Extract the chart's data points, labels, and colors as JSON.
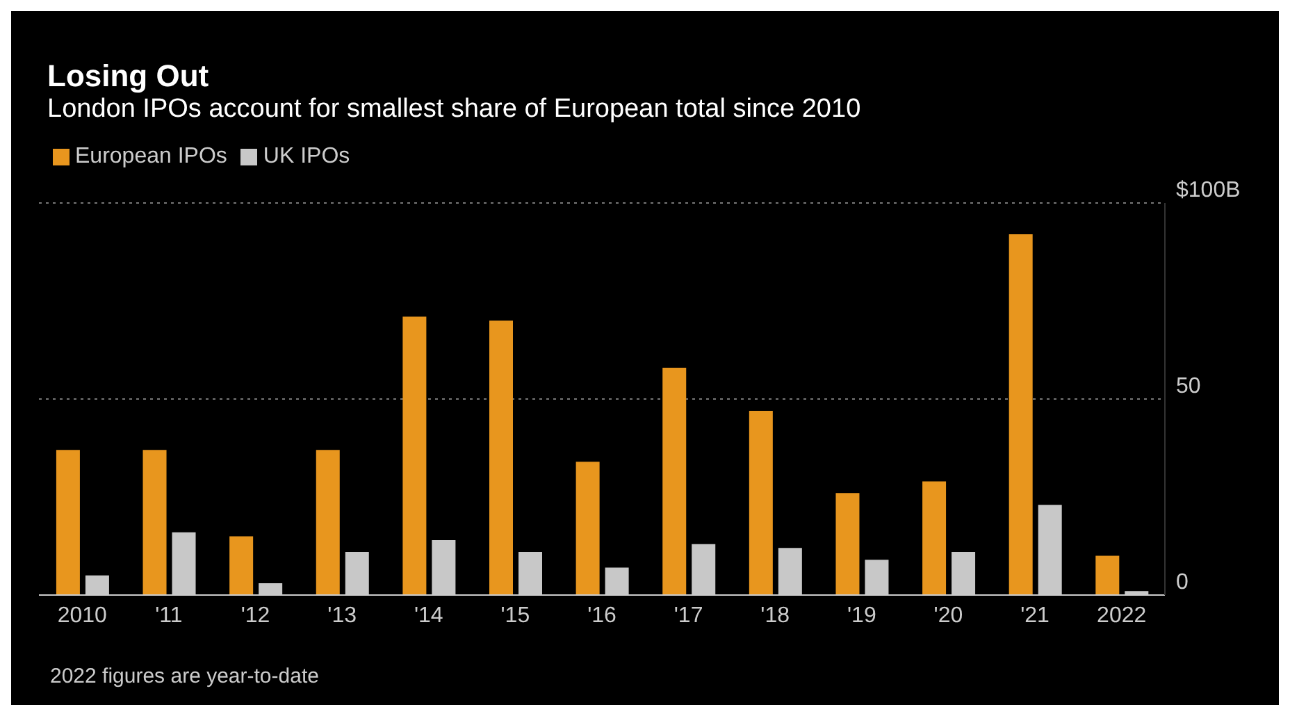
{
  "chart_data": {
    "type": "bar",
    "title": "Losing Out",
    "subtitle": "London IPOs account for smallest share of European total since 2010",
    "categories": [
      "2010",
      "'11",
      "'12",
      "'13",
      "'14",
      "'15",
      "'16",
      "'17",
      "'18",
      "'19",
      "'20",
      "'21",
      "2022"
    ],
    "series": [
      {
        "name": "European IPOs",
        "color": "#e8961e",
        "values": [
          37,
          37,
          15,
          37,
          71,
          70,
          34,
          58,
          47,
          26,
          29,
          92,
          10
        ]
      },
      {
        "name": "UK IPOs",
        "color": "#c8c8c8",
        "values": [
          5,
          16,
          3,
          11,
          14,
          11,
          7,
          13,
          12,
          9,
          11,
          23,
          1
        ]
      }
    ],
    "ylim": [
      0,
      100
    ],
    "yticks": [
      0,
      50,
      {
        "value": 100,
        "label": "$100B"
      }
    ],
    "grid": "y",
    "legend": "top left",
    "annotations": [
      "2022 figures are year-to-date"
    ]
  }
}
